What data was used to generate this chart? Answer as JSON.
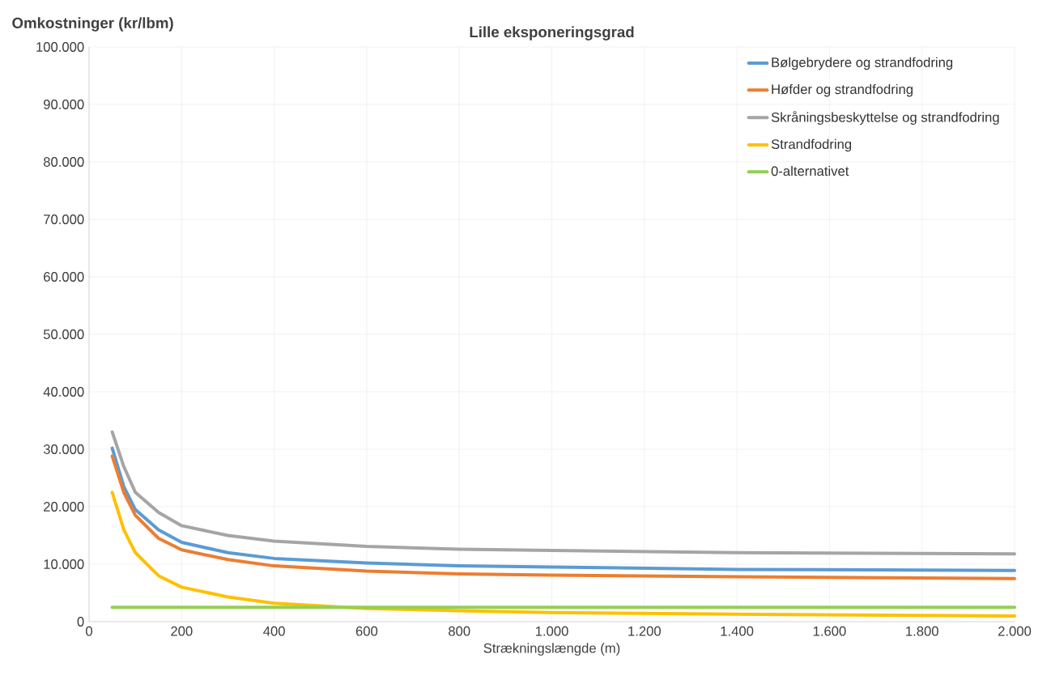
{
  "chart_data": {
    "type": "line",
    "title": "Lille eksponeringsgrad",
    "xlabel": "Strækningslængde (m)",
    "ylabel": "Omkostninger (kr/lbm)",
    "x": [
      50,
      75,
      100,
      150,
      200,
      300,
      400,
      600,
      800,
      1000,
      1400,
      2000
    ],
    "series": [
      {
        "name": "Bølgebrydere og strandfodring",
        "color": "#5b9bd5",
        "values": [
          30200,
          23500,
          19500,
          16000,
          13800,
          12000,
          11000,
          10200,
          9700,
          9500,
          9100,
          8900
        ]
      },
      {
        "name": "Høfder og strandfodring",
        "color": "#ed7d31",
        "values": [
          28800,
          22500,
          18500,
          14500,
          12500,
          10800,
          9700,
          8800,
          8300,
          8100,
          7800,
          7500
        ]
      },
      {
        "name": "Skråningsbeskyttelse og strandfodring",
        "color": "#a5a5a5",
        "values": [
          33000,
          27000,
          22500,
          19000,
          16700,
          15000,
          14000,
          13100,
          12600,
          12400,
          12000,
          11800
        ]
      },
      {
        "name": "Strandfodring",
        "color": "#ffc000",
        "values": [
          22500,
          16000,
          12000,
          8000,
          6000,
          4300,
          3200,
          2300,
          1900,
          1600,
          1300,
          1000
        ]
      },
      {
        "name": "0-alternativet",
        "color": "#92d050",
        "values": [
          2500,
          2500,
          2500,
          2500,
          2500,
          2500,
          2500,
          2500,
          2500,
          2500,
          2500,
          2500
        ]
      }
    ],
    "xlim": [
      0,
      2000
    ],
    "xticks": [
      0,
      200,
      400,
      600,
      800,
      {
        "value": 1000,
        "label": "1.000"
      },
      {
        "value": 1200,
        "label": "1.200"
      },
      {
        "value": 1400,
        "label": "1.400"
      },
      {
        "value": 1600,
        "label": "1.600"
      },
      {
        "value": 1800,
        "label": "1.800"
      },
      {
        "value": 2000,
        "label": "2.000"
      }
    ],
    "ylim": [
      0,
      100000
    ],
    "yticks": [
      0,
      {
        "value": 10000,
        "label": "10.000"
      },
      {
        "value": 20000,
        "label": "20.000"
      },
      {
        "value": 30000,
        "label": "30.000"
      },
      {
        "value": 40000,
        "label": "40.000"
      },
      {
        "value": 50000,
        "label": "50.000"
      },
      {
        "value": 60000,
        "label": "60.000"
      },
      {
        "value": 70000,
        "label": "70.000"
      },
      {
        "value": 80000,
        "label": "80.000"
      },
      {
        "value": 90000,
        "label": "90.000"
      },
      {
        "value": 100000,
        "label": "100.000"
      }
    ],
    "grid": true,
    "legend": "top right",
    "marker": "none",
    "line_style": "solid"
  }
}
